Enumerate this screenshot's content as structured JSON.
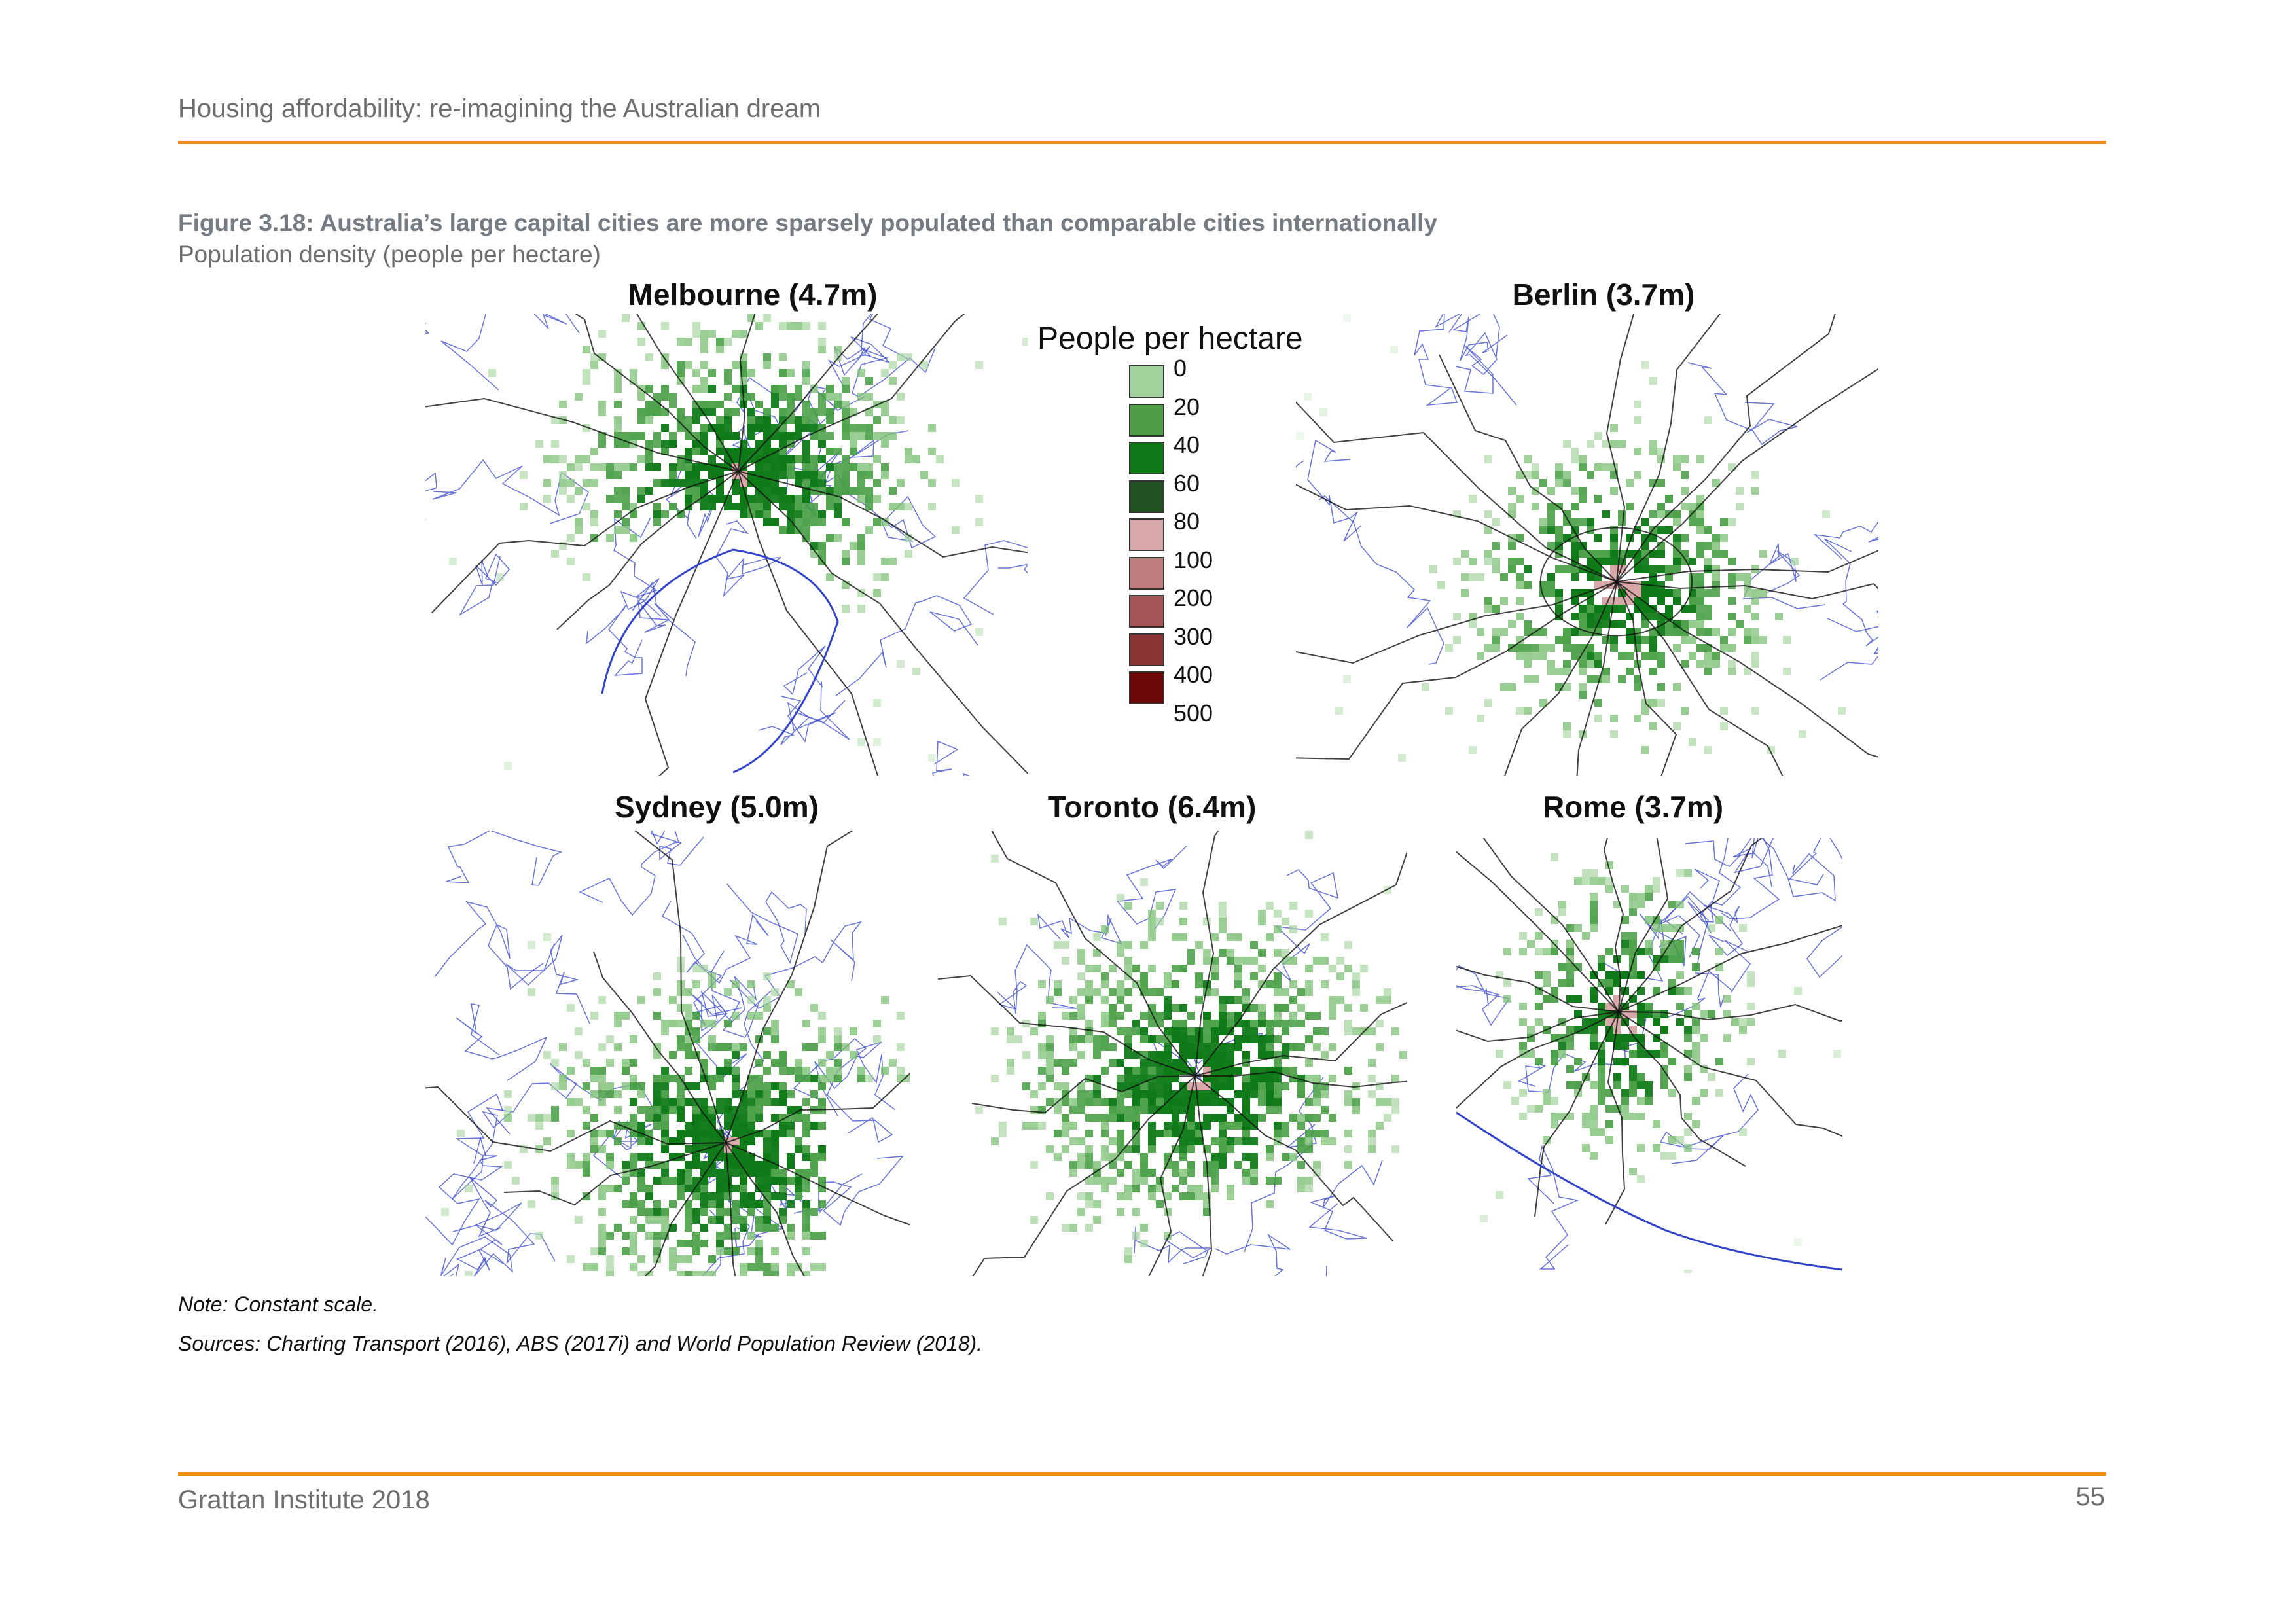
{
  "header": {
    "title": "Housing affordability: re-imagining the Australian dream"
  },
  "figure": {
    "title": "Figure 3.18: Australia’s large capital cities are more sparsely populated than comparable cities internationally",
    "subtitle": "Population density (people per hectare)"
  },
  "cities": [
    {
      "title": "Melbourne (4.7m)"
    },
    {
      "title": "Berlin (3.7m)"
    },
    {
      "title": "Sydney (5.0m)"
    },
    {
      "title": "Toronto (6.4m)"
    },
    {
      "title": "Rome (3.7m)"
    }
  ],
  "legend": {
    "title": "People per hectare",
    "labels": [
      "0",
      "20",
      "40",
      "60",
      "80",
      "100",
      "200",
      "300",
      "400",
      "500"
    ],
    "swatch_colors": [
      "#a3d39c",
      "#4e9e47",
      "#0f7a18",
      "#1f5220",
      "#d8a8a8",
      "#be7c7c",
      "#a45454",
      "#8b3434",
      "#6e0808"
    ]
  },
  "colors": {
    "accent_rule": "#f28e1c",
    "road": "#111111",
    "boundary": "#3344cc",
    "density_low": "#a3d39c",
    "density_high": "#0f7a18",
    "density_core": "#d8a8a8"
  },
  "notes": {
    "note": "Note: Constant scale.",
    "sources": "Sources: Charting Transport (2016), ABS (2017i) and World Population Review (2018)."
  },
  "footer": {
    "org": "Grattan Institute 2018",
    "page": "55"
  }
}
